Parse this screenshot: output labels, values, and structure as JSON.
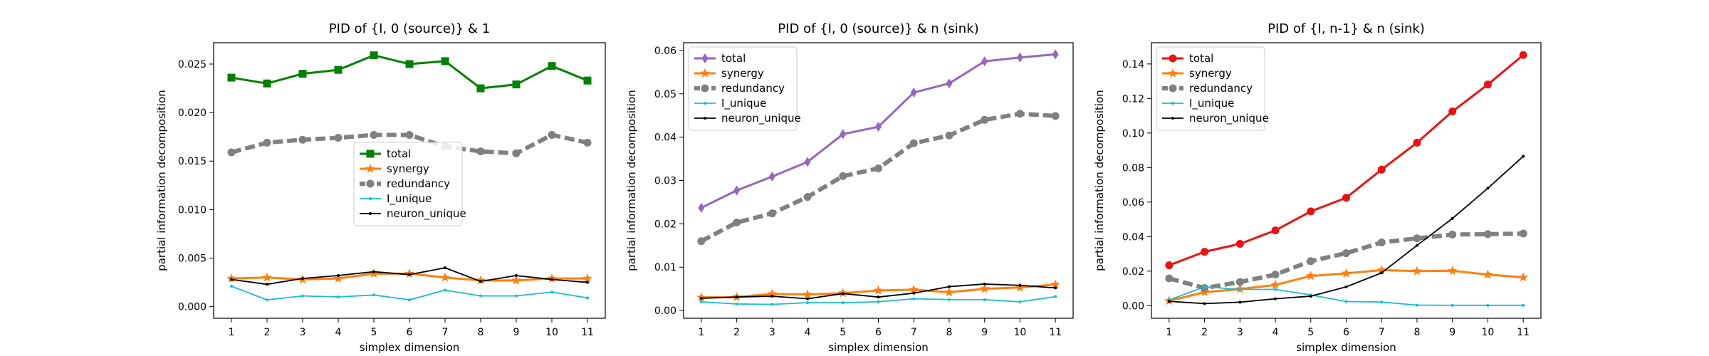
{
  "chart_data": [
    {
      "type": "line",
      "title": "PID of {I, 0 (source)} & 1",
      "xlabel": "simplex dimension",
      "ylabel": "partial information decomposition",
      "x": [
        1,
        2,
        3,
        4,
        5,
        6,
        7,
        8,
        9,
        10,
        11
      ],
      "xticks": [
        "1",
        "2",
        "3",
        "4",
        "5",
        "6",
        "7",
        "8",
        "9",
        "10",
        "11"
      ],
      "ylim": [
        -0.0012,
        0.0272
      ],
      "yticks": [
        "0.000",
        "0.005",
        "0.010",
        "0.015",
        "0.020",
        "0.025"
      ],
      "legend_position": "center",
      "series": [
        {
          "name": "total",
          "color": "#008000",
          "marker": "square",
          "dash": "solid",
          "values": [
            0.0236,
            0.023,
            0.024,
            0.0244,
            0.0259,
            0.025,
            0.0253,
            0.0225,
            0.0229,
            0.0248,
            0.0233
          ]
        },
        {
          "name": "synergy",
          "color": "#ff7f0e",
          "marker": "star",
          "dash": "solid",
          "values": [
            0.0029,
            0.003,
            0.0028,
            0.0029,
            0.0034,
            0.0034,
            0.003,
            0.0027,
            0.0027,
            0.0029,
            0.0029
          ]
        },
        {
          "name": "redundancy",
          "color": "#808080",
          "marker": "circle",
          "dash": "dashed",
          "values": [
            0.0159,
            0.0169,
            0.0172,
            0.0174,
            0.0177,
            0.0177,
            0.0165,
            0.016,
            0.0158,
            0.0177,
            0.0169
          ]
        },
        {
          "name": "I_unique",
          "color": "#17becf",
          "marker": "point",
          "dash": "solid",
          "values": [
            0.0021,
            0.0007,
            0.0011,
            0.001,
            0.0012,
            0.0007,
            0.0017,
            0.0011,
            0.0011,
            0.0015,
            0.0009
          ]
        },
        {
          "name": "neuron_unique",
          "color": "#000000",
          "marker": "point",
          "dash": "solid",
          "values": [
            0.0028,
            0.0023,
            0.0029,
            0.0032,
            0.0036,
            0.0033,
            0.004,
            0.0026,
            0.0032,
            0.0028,
            0.0025
          ]
        }
      ]
    },
    {
      "type": "line",
      "title": "PID of {I, 0 (source)} & n (sink)",
      "xlabel": "simplex dimension",
      "ylabel": "partial information decomposition",
      "x": [
        1,
        2,
        3,
        4,
        5,
        6,
        7,
        8,
        9,
        10,
        11
      ],
      "xticks": [
        "1",
        "2",
        "3",
        "4",
        "5",
        "6",
        "7",
        "8",
        "9",
        "10",
        "11"
      ],
      "ylim": [
        -0.0018,
        0.0618
      ],
      "yticks": [
        "0.00",
        "0.01",
        "0.02",
        "0.03",
        "0.04",
        "0.05",
        "0.06"
      ],
      "legend_position": "top-left",
      "series": [
        {
          "name": "total",
          "color": "#9467bd",
          "marker": "diamond",
          "dash": "solid",
          "values": [
            0.0237,
            0.0277,
            0.0309,
            0.0343,
            0.0407,
            0.0424,
            0.0503,
            0.0524,
            0.0575,
            0.0584,
            0.0591
          ]
        },
        {
          "name": "synergy",
          "color": "#ff7f0e",
          "marker": "star",
          "dash": "solid",
          "values": [
            0.003,
            0.0031,
            0.0038,
            0.0037,
            0.004,
            0.0046,
            0.0048,
            0.0042,
            0.005,
            0.0053,
            0.006
          ]
        },
        {
          "name": "redundancy",
          "color": "#808080",
          "marker": "circle",
          "dash": "dashed",
          "values": [
            0.016,
            0.0203,
            0.0224,
            0.0262,
            0.031,
            0.0328,
            0.0386,
            0.0404,
            0.044,
            0.0454,
            0.0449
          ]
        },
        {
          "name": "I_unique",
          "color": "#17becf",
          "marker": "point",
          "dash": "solid",
          "values": [
            0.002,
            0.0015,
            0.0014,
            0.0018,
            0.0018,
            0.002,
            0.0027,
            0.0025,
            0.0025,
            0.002,
            0.0032
          ]
        },
        {
          "name": "neuron_unique",
          "color": "#000000",
          "marker": "point",
          "dash": "solid",
          "values": [
            0.0028,
            0.0031,
            0.0033,
            0.0027,
            0.0039,
            0.0031,
            0.004,
            0.0055,
            0.0061,
            0.0058,
            0.0052
          ]
        }
      ]
    },
    {
      "type": "line",
      "title": "PID of {I, n-1} & n (sink)",
      "xlabel": "simplex dimension",
      "ylabel": "partial information decomposition",
      "x": [
        1,
        2,
        3,
        4,
        5,
        6,
        7,
        8,
        9,
        10,
        11
      ],
      "xticks": [
        "1",
        "2",
        "3",
        "4",
        "5",
        "6",
        "7",
        "8",
        "9",
        "10",
        "11"
      ],
      "ylim": [
        -0.0073,
        0.1523
      ],
      "yticks": [
        "0.00",
        "0.02",
        "0.04",
        "0.06",
        "0.08",
        "0.10",
        "0.12",
        "0.14"
      ],
      "legend_position": "top-left",
      "series": [
        {
          "name": "total",
          "color": "#ee1111",
          "marker": "circle",
          "dash": "solid",
          "values": [
            0.0234,
            0.0312,
            0.0358,
            0.0436,
            0.0546,
            0.0625,
            0.0788,
            0.0944,
            0.1125,
            0.1281,
            0.1452
          ]
        },
        {
          "name": "synergy",
          "color": "#ff7f0e",
          "marker": "star",
          "dash": "solid",
          "values": [
            0.0028,
            0.0078,
            0.0096,
            0.012,
            0.0172,
            0.0187,
            0.0206,
            0.02,
            0.0202,
            0.018,
            0.0164
          ]
        },
        {
          "name": "redundancy",
          "color": "#808080",
          "marker": "circle",
          "dash": "dashed",
          "values": [
            0.0158,
            0.0102,
            0.0137,
            0.018,
            0.0258,
            0.0304,
            0.0366,
            0.039,
            0.0412,
            0.0414,
            0.0418
          ]
        },
        {
          "name": "I_unique",
          "color": "#17becf",
          "marker": "point",
          "dash": "solid",
          "values": [
            0.0033,
            0.0109,
            0.0094,
            0.0094,
            0.0062,
            0.0024,
            0.0021,
            0.0003,
            0.0002,
            0.0002,
            0.0002
          ]
        },
        {
          "name": "neuron_unique",
          "color": "#000000",
          "marker": "point",
          "dash": "solid",
          "values": [
            0.0025,
            0.0012,
            0.002,
            0.004,
            0.0055,
            0.0109,
            0.019,
            0.0349,
            0.0505,
            0.068,
            0.0865
          ]
        }
      ]
    }
  ]
}
